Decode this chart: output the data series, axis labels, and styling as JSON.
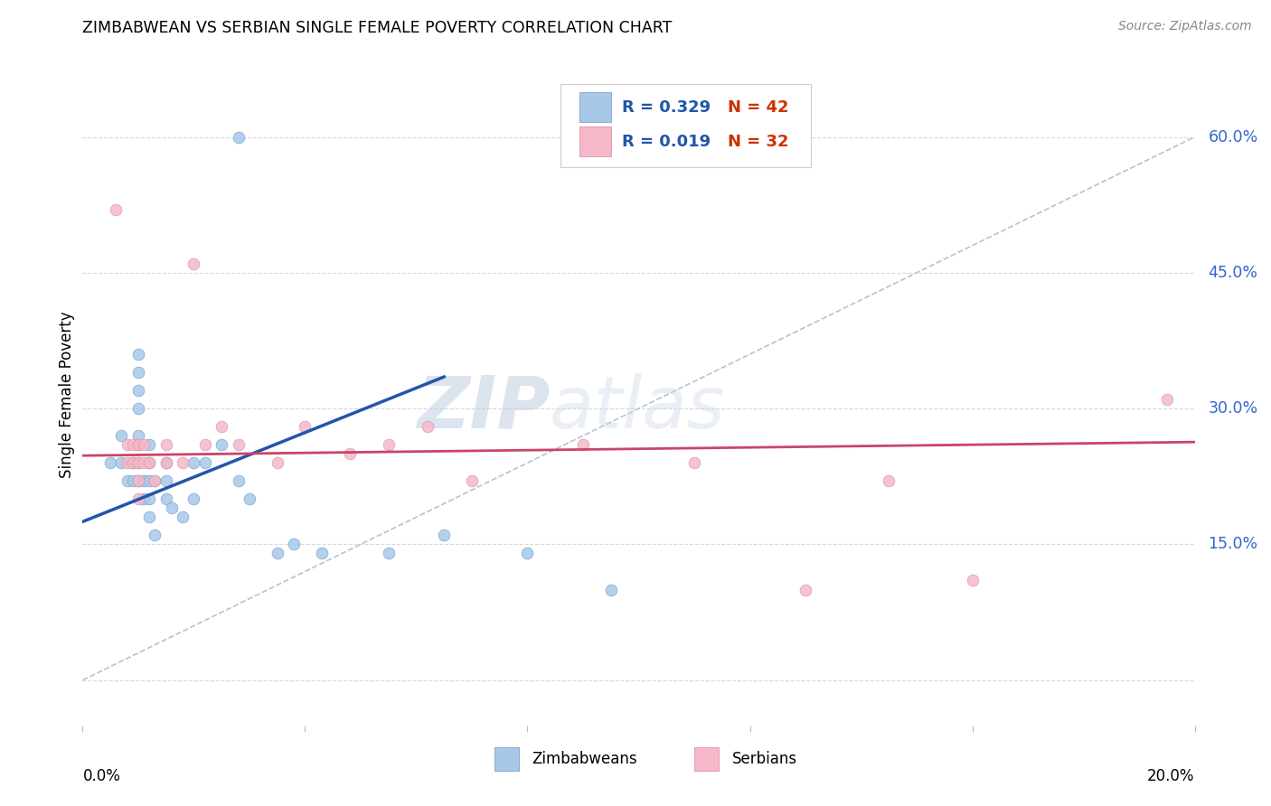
{
  "title": "ZIMBABWEAN VS SERBIAN SINGLE FEMALE POVERTY CORRELATION CHART",
  "source": "Source: ZipAtlas.com",
  "ylabel": "Single Female Poverty",
  "xlim": [
    0.0,
    0.2
  ],
  "ylim": [
    -0.05,
    0.68
  ],
  "yticks": [
    0.0,
    0.15,
    0.3,
    0.45,
    0.6
  ],
  "ytick_labels": [
    "",
    "15.0%",
    "30.0%",
    "45.0%",
    "60.0%"
  ],
  "xticks": [
    0.0,
    0.04,
    0.08,
    0.12,
    0.16,
    0.2
  ],
  "color_zim": "#a8c8e8",
  "color_ser": "#f4b8c8",
  "color_zim_line": "#2255aa",
  "color_ser_line": "#cc4466",
  "color_diag": "#b8cce0",
  "background": "#ffffff",
  "grid_color": "#d8d8d8",
  "watermark_zip": "ZIP",
  "watermark_atlas": "atlas",
  "zim_x": [
    0.005,
    0.007,
    0.007,
    0.008,
    0.009,
    0.009,
    0.01,
    0.01,
    0.01,
    0.01,
    0.01,
    0.01,
    0.01,
    0.01,
    0.011,
    0.011,
    0.012,
    0.012,
    0.012,
    0.012,
    0.012,
    0.013,
    0.013,
    0.015,
    0.015,
    0.015,
    0.016,
    0.018,
    0.02,
    0.02,
    0.022,
    0.025,
    0.028,
    0.03,
    0.035,
    0.038,
    0.043,
    0.055,
    0.065,
    0.08,
    0.095,
    0.028
  ],
  "zim_y": [
    0.24,
    0.27,
    0.24,
    0.22,
    0.24,
    0.22,
    0.36,
    0.34,
    0.32,
    0.3,
    0.27,
    0.26,
    0.24,
    0.22,
    0.22,
    0.2,
    0.26,
    0.24,
    0.22,
    0.2,
    0.18,
    0.16,
    0.22,
    0.24,
    0.22,
    0.2,
    0.19,
    0.18,
    0.24,
    0.2,
    0.24,
    0.26,
    0.22,
    0.2,
    0.14,
    0.15,
    0.14,
    0.14,
    0.16,
    0.14,
    0.1,
    0.6
  ],
  "ser_x": [
    0.006,
    0.008,
    0.008,
    0.009,
    0.009,
    0.01,
    0.01,
    0.01,
    0.01,
    0.011,
    0.011,
    0.012,
    0.013,
    0.015,
    0.015,
    0.018,
    0.02,
    0.022,
    0.025,
    0.028,
    0.035,
    0.04,
    0.048,
    0.055,
    0.062,
    0.07,
    0.09,
    0.11,
    0.13,
    0.145,
    0.16,
    0.195
  ],
  "ser_y": [
    0.52,
    0.26,
    0.24,
    0.26,
    0.24,
    0.26,
    0.24,
    0.22,
    0.2,
    0.26,
    0.24,
    0.24,
    0.22,
    0.26,
    0.24,
    0.24,
    0.46,
    0.26,
    0.28,
    0.26,
    0.24,
    0.28,
    0.25,
    0.26,
    0.28,
    0.22,
    0.26,
    0.24,
    0.1,
    0.22,
    0.11,
    0.31
  ],
  "zim_trend_x": [
    0.0,
    0.065
  ],
  "zim_trend_y": [
    0.175,
    0.335
  ],
  "ser_trend_x": [
    0.0,
    0.2
  ],
  "ser_trend_y": [
    0.248,
    0.263
  ]
}
